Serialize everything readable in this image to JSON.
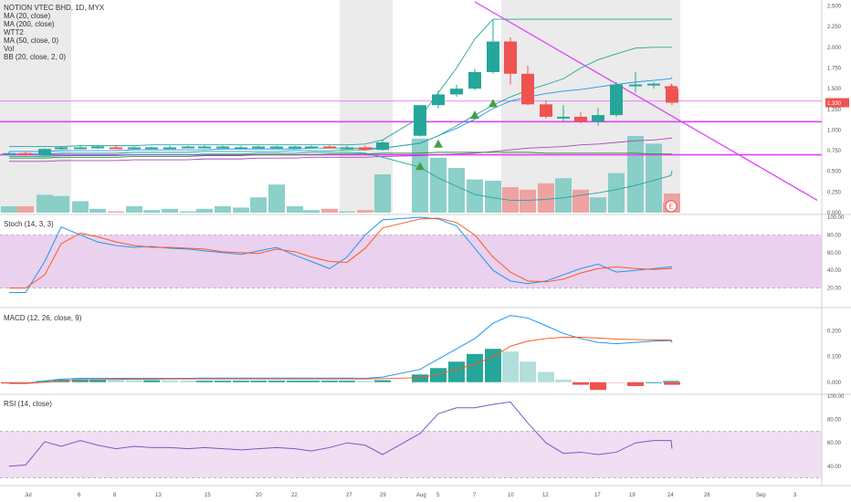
{
  "chart_title": "NOTION VTEC BHD, 1D, MYX",
  "indicators": [
    "MA (20, close)",
    "MA (200, close)",
    "WTT2",
    "MA (50, close, 0)",
    "Vol",
    "BB (20, close, 2, 0)"
  ],
  "price_badge": "1.330",
  "earnings_marker": "E",
  "panels": {
    "stoch": {
      "label": "Stoch (14, 3, 3)",
      "ticks": [
        "100.00",
        "80.00",
        "60.00",
        "40.00",
        "20.00"
      ]
    },
    "macd": {
      "label": "MACD (12, 26, close, 9)",
      "ticks": [
        "0.200",
        "0.100",
        "0.000"
      ]
    },
    "rsi": {
      "label": "RSI (14, close)",
      "ticks": [
        "100.00",
        "80.00",
        "60.00",
        "40.00"
      ]
    }
  },
  "price_ticks": [
    "2.500",
    "2.250",
    "2.000",
    "1.750",
    "1.500",
    "1.250",
    "1.000",
    "0.750",
    "0.500",
    "0.250",
    "0.000"
  ],
  "x_ticks": [
    "Jul",
    "6",
    "8",
    "13",
    "15",
    "20",
    "22",
    "27",
    "29",
    "Aug",
    "5",
    "7",
    "10",
    "12",
    "17",
    "19",
    "24",
    "26",
    "Sep",
    "3"
  ],
  "colors": {
    "up": "#26a69a",
    "down": "#ef5350",
    "up_vol": "#80cbc4",
    "down_vol": "#ef9a9a",
    "trendline": "#e040fb",
    "shade": "#ebebeb",
    "stoch_k": "#2196f3",
    "stoch_d": "#ff5722",
    "rsi_line": "#7e57c2",
    "band": "#e1bee7",
    "grid": "#f0f0f0"
  },
  "chart_data": [
    {
      "type": "candlestick",
      "title": "NOTION VTEC BHD, 1D, MYX",
      "ylim": [
        0,
        2.55
      ],
      "dates": [
        "Jul 1",
        "Jul 2",
        "Jul 3",
        "Jul 6",
        "Jul 7",
        "Jul 8",
        "Jul 9",
        "Jul 10",
        "Jul 13",
        "Jul 14",
        "Jul 15",
        "Jul 16",
        "Jul 17",
        "Jul 20",
        "Jul 21",
        "Jul 22",
        "Jul 23",
        "Jul 24",
        "Jul 27",
        "Jul 28",
        "Jul 29",
        "Jul 30",
        "Aug 3",
        "Aug 4",
        "Aug 5",
        "Aug 6",
        "Aug 7",
        "Aug 10",
        "Aug 11",
        "Aug 12",
        "Aug 13",
        "Aug 14",
        "Aug 17",
        "Aug 18",
        "Aug 19",
        "Aug 20",
        "Aug 21",
        "Aug 24"
      ],
      "open": [
        0.72,
        0.72,
        0.69,
        0.78,
        0.78,
        0.79,
        0.79,
        0.78,
        0.78,
        0.79,
        0.79,
        0.79,
        0.79,
        0.79,
        0.79,
        0.79,
        0.79,
        0.79,
        0.8,
        0.79,
        0.79,
        0.76,
        0.93,
        1.3,
        1.43,
        1.5,
        1.7,
        2.07,
        1.68,
        1.31,
        1.16,
        1.16,
        1.1,
        1.18,
        1.55,
        1.55,
        1.53,
        1.5
      ],
      "high": [
        0.74,
        0.74,
        0.78,
        0.8,
        0.81,
        0.81,
        0.82,
        0.8,
        0.8,
        0.81,
        0.81,
        0.82,
        0.81,
        0.81,
        0.81,
        0.81,
        0.81,
        0.81,
        0.82,
        0.81,
        0.81,
        0.88,
        1.3,
        1.48,
        1.55,
        1.74,
        2.33,
        2.12,
        1.78,
        1.36,
        1.3,
        1.22,
        1.27,
        1.58,
        1.7,
        1.58,
        1.56,
        1.55
      ],
      "low": [
        0.7,
        0.69,
        0.68,
        0.76,
        0.77,
        0.77,
        0.78,
        0.77,
        0.77,
        0.78,
        0.78,
        0.78,
        0.78,
        0.78,
        0.78,
        0.78,
        0.78,
        0.78,
        0.78,
        0.77,
        0.75,
        0.75,
        0.92,
        1.26,
        1.4,
        1.48,
        1.68,
        1.55,
        1.3,
        1.14,
        1.1,
        1.08,
        1.05,
        1.16,
        1.45,
        1.5,
        1.48,
        1.3
      ],
      "close": [
        0.72,
        0.7,
        0.77,
        0.79,
        0.79,
        0.8,
        0.78,
        0.79,
        0.79,
        0.79,
        0.8,
        0.8,
        0.8,
        0.79,
        0.8,
        0.8,
        0.8,
        0.8,
        0.79,
        0.79,
        0.76,
        0.85,
        1.3,
        1.43,
        1.5,
        1.7,
        2.07,
        1.68,
        1.31,
        1.16,
        1.16,
        1.1,
        1.18,
        1.55,
        1.55,
        1.56,
        1.5,
        1.33
      ],
      "volume": [
        0.05,
        0.05,
        0.14,
        0.13,
        0.09,
        0.03,
        0.01,
        0.05,
        0.02,
        0.03,
        0.01,
        0.03,
        0.05,
        0.04,
        0.12,
        0.22,
        0.05,
        0.02,
        0.03,
        0.01,
        0.02,
        0.3,
        0.58,
        0.43,
        0.35,
        0.26,
        0.25,
        0.2,
        0.18,
        0.23,
        0.27,
        0.18,
        0.12,
        0.31,
        0.6,
        0.54,
        0.08,
        0.15
      ],
      "series": [
        {
          "values": [
            0.74,
            0.74,
            0.74,
            0.75,
            0.75,
            0.75,
            0.75,
            0.76,
            0.76,
            0.76,
            0.76,
            0.76,
            0.77,
            0.77,
            0.77,
            0.77,
            0.77,
            0.78,
            0.78,
            0.78,
            0.78,
            0.78,
            0.84,
            0.93,
            1.02,
            1.13,
            1.26,
            1.35,
            1.4,
            1.44,
            1.47,
            1.49,
            1.52,
            1.55,
            1.58,
            1.6,
            1.62,
            1.64
          ]
        },
        {
          "values": [
            0.62,
            0.62,
            0.62,
            0.63,
            0.63,
            0.63,
            0.63,
            0.64,
            0.64,
            0.64,
            0.64,
            0.65,
            0.65,
            0.65,
            0.66,
            0.66,
            0.66,
            0.67,
            0.67,
            0.67,
            0.67,
            0.68,
            0.69,
            0.7,
            0.71,
            0.72,
            0.74,
            0.76,
            0.78,
            0.79,
            0.8,
            0.82,
            0.83,
            0.85,
            0.87,
            0.88,
            0.9,
            0.91
          ]
        },
        {
          "values": [
            0.66,
            0.66,
            0.66,
            0.67,
            0.67,
            0.67,
            0.67,
            0.68,
            0.68,
            0.68,
            0.68,
            0.69,
            0.69,
            0.69,
            0.7,
            0.7,
            0.7,
            0.7,
            0.71,
            0.71,
            0.71,
            0.72,
            0.72,
            0.73,
            0.73,
            0.73,
            0.73,
            0.73,
            0.73,
            0.72,
            0.72,
            0.72,
            0.72,
            0.72,
            0.72,
            0.71,
            0.71,
            0.71
          ]
        },
        {
          "values": [
            0.71,
            0.71,
            0.71,
            0.72,
            0.72,
            0.72,
            0.72,
            0.73,
            0.73,
            0.73,
            0.73,
            0.74,
            0.74,
            0.74,
            0.74,
            0.74,
            0.75,
            0.75,
            0.75,
            0.76,
            0.76,
            0.78,
            0.84,
            0.93,
            1.05,
            1.18,
            1.3,
            1.4,
            1.48,
            1.55,
            1.62,
            1.75,
            1.85,
            1.92,
            1.99,
            2.0,
            2.0,
            2.0
          ]
        },
        {
          "values": [
            0.8,
            0.8,
            0.8,
            0.8,
            0.81,
            0.81,
            0.81,
            0.81,
            0.82,
            0.82,
            0.82,
            0.82,
            0.82,
            0.82,
            0.82,
            0.82,
            0.82,
            0.82,
            0.82,
            0.82,
            0.83,
            0.88,
            1.15,
            1.45,
            1.75,
            2.1,
            2.34,
            2.34,
            2.34,
            2.34,
            2.34,
            2.34,
            2.34,
            2.34,
            2.34,
            2.34,
            2.34,
            2.34
          ]
        },
        {
          "values": [
            0.68,
            0.68,
            0.68,
            0.69,
            0.69,
            0.69,
            0.69,
            0.7,
            0.7,
            0.7,
            0.7,
            0.71,
            0.71,
            0.71,
            0.72,
            0.72,
            0.72,
            0.73,
            0.73,
            0.73,
            0.72,
            0.67,
            0.55,
            0.42,
            0.32,
            0.22,
            0.18,
            0.15,
            0.15,
            0.16,
            0.18,
            0.21,
            0.24,
            0.28,
            0.33,
            0.39,
            0.45,
            0.51
          ]
        }
      ],
      "horizontal_lines": [
        1.35,
        1.1,
        0.7
      ],
      "trendline": {
        "from": [
          "Aug 6",
          2.55
        ],
        "to": [
          "Sep 4",
          0.15
        ]
      }
    },
    {
      "type": "line",
      "title": "Stoch (14, 3, 3)",
      "ylim": [
        0,
        100
      ],
      "series": [
        {
          "name": "%K",
          "values": [
            15,
            15,
            50,
            89,
            80,
            72,
            68,
            66,
            67,
            65,
            64,
            62,
            60,
            58,
            62,
            66,
            57,
            50,
            42,
            55,
            80,
            97,
            100,
            98,
            90,
            65,
            40,
            28,
            25,
            28,
            35,
            42,
            47,
            38,
            40,
            42,
            44,
            44
          ]
        },
        {
          "name": "%D",
          "values": [
            20,
            20,
            35,
            70,
            82,
            78,
            72,
            68,
            66,
            66,
            65,
            64,
            61,
            60,
            59,
            64,
            61,
            55,
            50,
            49,
            65,
            88,
            98,
            99,
            94,
            80,
            55,
            38,
            28,
            27,
            30,
            37,
            42,
            44,
            42,
            41,
            42,
            42
          ]
        }
      ]
    },
    {
      "type": "bar",
      "title": "MACD (12, 26, close, 9)",
      "ylim": [
        -0.04,
        0.28
      ],
      "histogram": [
        -0.005,
        -0.005,
        0.005,
        0.01,
        0.012,
        0.012,
        0.01,
        0.008,
        0.008,
        0.007,
        0.006,
        0.006,
        0.006,
        0.006,
        0.006,
        0.006,
        0.006,
        0.006,
        0.006,
        0.006,
        0.005,
        0.008,
        0.03,
        0.055,
        0.08,
        0.11,
        0.13,
        0.12,
        0.08,
        0.04,
        0.01,
        -0.01,
        -0.03,
        -0.005,
        -0.015,
        0.0,
        0.005,
        -0.01
      ],
      "series": [
        {
          "name": "MACD",
          "values": [
            -0.005,
            -0.005,
            0.005,
            0.012,
            0.015,
            0.015,
            0.015,
            0.015,
            0.015,
            0.015,
            0.015,
            0.016,
            0.016,
            0.016,
            0.016,
            0.016,
            0.016,
            0.016,
            0.016,
            0.016,
            0.015,
            0.02,
            0.05,
            0.09,
            0.13,
            0.17,
            0.23,
            0.26,
            0.25,
            0.22,
            0.19,
            0.17,
            0.155,
            0.15,
            0.155,
            0.16,
            0.162,
            0.155
          ]
        },
        {
          "name": "Signal",
          "values": [
            -0.005,
            -0.005,
            0.0,
            0.005,
            0.008,
            0.01,
            0.011,
            0.012,
            0.012,
            0.013,
            0.013,
            0.013,
            0.013,
            0.013,
            0.013,
            0.013,
            0.013,
            0.013,
            0.013,
            0.013,
            0.013,
            0.014,
            0.018,
            0.03,
            0.05,
            0.07,
            0.1,
            0.14,
            0.16,
            0.17,
            0.175,
            0.175,
            0.172,
            0.168,
            0.166,
            0.165,
            0.164,
            0.16
          ]
        }
      ]
    },
    {
      "type": "line",
      "title": "RSI (14, close)",
      "ylim": [
        25,
        100
      ],
      "series": [
        {
          "values": [
            40,
            41,
            61,
            57,
            62,
            58,
            55,
            57,
            56,
            56,
            55,
            56,
            55,
            54,
            55,
            56,
            55,
            53,
            56,
            60,
            58,
            50,
            68,
            85,
            90,
            90,
            93,
            95,
            77,
            60,
            51,
            52,
            50,
            52,
            60,
            62,
            62,
            55
          ]
        }
      ]
    }
  ]
}
